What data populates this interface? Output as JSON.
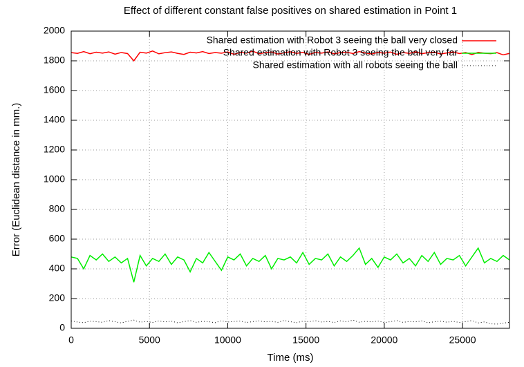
{
  "chart_data": {
    "type": "line",
    "title": "Effect of different constant false positives on shared estimation in Point 1",
    "x_label": "Time (ms)",
    "y_label": "Error (Euclidean distance in mm.)",
    "x": [
      0,
      400,
      800,
      1200,
      1600,
      2000,
      2400,
      2800,
      3200,
      3600,
      4000,
      4400,
      4800,
      5200,
      5600,
      6000,
      6400,
      6800,
      7200,
      7600,
      8000,
      8400,
      8800,
      9200,
      9600,
      10000,
      10400,
      10800,
      11200,
      11600,
      12000,
      12400,
      12800,
      13200,
      13600,
      14000,
      14400,
      14800,
      15200,
      15600,
      16000,
      16400,
      16800,
      17200,
      17600,
      18000,
      18400,
      18800,
      19200,
      19600,
      20000,
      20400,
      20800,
      21200,
      21600,
      22000,
      22400,
      22800,
      23200,
      23600,
      24000,
      24400,
      24800,
      25200,
      25600,
      26000,
      26400,
      26800,
      27200,
      27600,
      28000
    ],
    "series": [
      {
        "name": "Shared estimation with Robot 3 seeing the ball very closed",
        "color": "#ff0000",
        "dash": "solid",
        "values": [
          1855,
          1850,
          1862,
          1848,
          1858,
          1852,
          1860,
          1845,
          1856,
          1849,
          1800,
          1858,
          1852,
          1866,
          1847,
          1855,
          1860,
          1850,
          1843,
          1858,
          1853,
          1862,
          1849,
          1856,
          1851,
          1860,
          1844,
          1857,
          1852,
          1865,
          1848,
          1855,
          1859,
          1846,
          1854,
          1861,
          1850,
          1857,
          1843,
          1856,
          1852,
          1860,
          1847,
          1855,
          1858,
          1849,
          1862,
          1853,
          1846,
          1857,
          1851,
          1859,
          1844,
          1856,
          1850,
          1861,
          1848,
          1855,
          1858,
          1846,
          1853,
          1860,
          1849,
          1856,
          1842,
          1857,
          1851,
          1848,
          1855,
          1840,
          1850
        ]
      },
      {
        "name": "Shared estimation with Robot 3 seeing the ball very far",
        "color": "#00ee00",
        "dash": "solid",
        "values": [
          480,
          470,
          400,
          490,
          460,
          500,
          450,
          480,
          440,
          470,
          310,
          490,
          420,
          470,
          450,
          500,
          430,
          480,
          460,
          380,
          470,
          440,
          510,
          450,
          390,
          480,
          460,
          500,
          420,
          470,
          450,
          490,
          400,
          470,
          460,
          480,
          440,
          510,
          430,
          470,
          460,
          500,
          420,
          480,
          450,
          490,
          540,
          430,
          470,
          410,
          480,
          460,
          500,
          440,
          470,
          420,
          490,
          450,
          510,
          430,
          470,
          460,
          490,
          420,
          480,
          540,
          440,
          470,
          450,
          490,
          460
        ]
      },
      {
        "name": "Shared estimation with all robots seeing the ball",
        "color": "#000000",
        "dash": "dotted",
        "values": [
          50,
          42,
          38,
          48,
          45,
          40,
          52,
          44,
          36,
          47,
          55,
          41,
          46,
          39,
          50,
          43,
          48,
          37,
          45,
          52,
          40,
          47,
          44,
          38,
          51,
          42,
          46,
          49,
          39,
          45,
          50,
          43,
          47,
          40,
          53,
          44,
          38,
          48,
          45,
          51,
          42,
          46,
          39,
          50,
          44,
          55,
          41,
          47,
          43,
          49,
          38,
          45,
          52,
          40,
          46,
          43,
          50,
          37,
          44,
          48,
          41,
          47,
          39,
          45,
          52,
          36,
          43,
          30,
          28,
          35,
          40
        ]
      }
    ],
    "xlim": [
      0,
      28000
    ],
    "xticks": [
      0,
      5000,
      10000,
      15000,
      20000,
      25000
    ],
    "ylim": [
      0,
      2000
    ],
    "yticks": [
      0,
      200,
      400,
      600,
      800,
      1000,
      1200,
      1400,
      1600,
      1800,
      2000
    ],
    "grid": true,
    "legend": "top-right"
  }
}
